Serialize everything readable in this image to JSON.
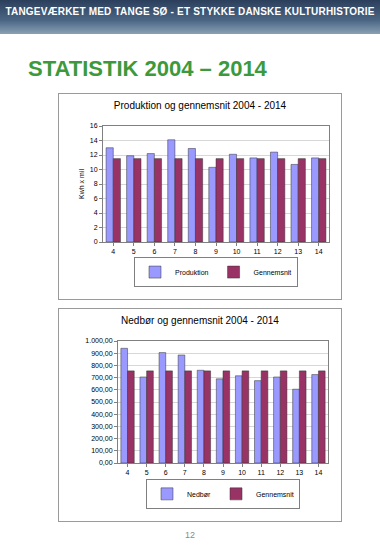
{
  "header": "TANGEVÆRKET MED TANGE SØ - ET STYKKE DANSKE KULTURHISTORIE",
  "title": "STATISTIK 2004 – 2014",
  "page_number": "12",
  "chart_data": [
    {
      "type": "bar",
      "title": "Produktion og gennemsnit 2004 - 2014",
      "y_label": "Kwh x mil",
      "categories": [
        "4",
        "5",
        "6",
        "7",
        "8",
        "9",
        "10",
        "11",
        "12",
        "13",
        "14"
      ],
      "series": [
        {
          "name": "Produktion",
          "color": "#9999ff",
          "values": [
            13.0,
            11.9,
            12.2,
            14.1,
            12.9,
            10.3,
            12.1,
            11.6,
            12.4,
            10.7,
            11.6
          ]
        },
        {
          "name": "Gennemsnit",
          "color": "#993366",
          "values": [
            11.5,
            11.5,
            11.5,
            11.5,
            11.5,
            11.5,
            11.5,
            11.5,
            11.5,
            11.5,
            11.5
          ]
        }
      ],
      "ylim": [
        0,
        16
      ],
      "yticks": [
        0,
        2,
        4,
        6,
        8,
        10,
        12,
        14,
        16
      ],
      "grid": true,
      "legend": "bottom"
    },
    {
      "type": "bar",
      "title": "Nedbør og gennemsnit 2004 - 2014",
      "categories": [
        "4",
        "5",
        "6",
        "7",
        "8",
        "9",
        "10",
        "11",
        "12",
        "13",
        "14"
      ],
      "series": [
        {
          "name": "Nedbør",
          "color": "#9999ff",
          "values": [
            940,
            705,
            905,
            885,
            760,
            690,
            715,
            675,
            705,
            605,
            725
          ]
        },
        {
          "name": "Gennemsnit",
          "color": "#993366",
          "values": [
            755,
            755,
            755,
            755,
            755,
            755,
            755,
            755,
            755,
            755,
            755
          ]
        }
      ],
      "ylim": [
        0,
        1000
      ],
      "yticks": [
        {
          "value": 0,
          "label": "0,00"
        },
        {
          "value": 100,
          "label": "100,00"
        },
        {
          "value": 200,
          "label": "200,00"
        },
        {
          "value": 300,
          "label": "300,00"
        },
        {
          "value": 400,
          "label": "400,00"
        },
        {
          "value": 500,
          "label": "500,00"
        },
        {
          "value": 600,
          "label": "600,00"
        },
        {
          "value": 700,
          "label": "700,00"
        },
        {
          "value": 800,
          "label": "800,00"
        },
        {
          "value": 900,
          "label": "900,00"
        },
        {
          "value": 1000,
          "label": "1.000,00"
        }
      ],
      "grid": true,
      "legend": "bottom"
    }
  ]
}
